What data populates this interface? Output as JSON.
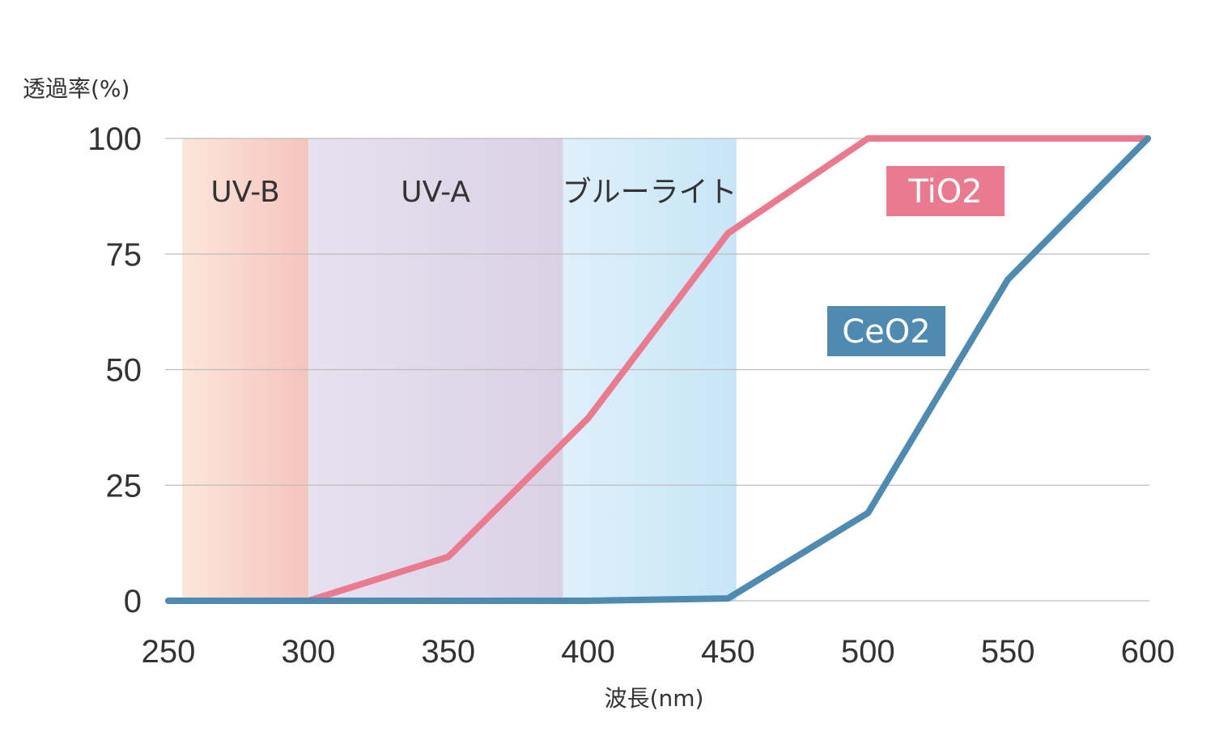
{
  "chart_data": {
    "type": "line",
    "ylabel": "透過率(%)",
    "xlabel": "波長(nm)",
    "xlim": [
      250,
      600
    ],
    "ylim": [
      0,
      100
    ],
    "x_ticks": [
      "250",
      "300",
      "350",
      "400",
      "450",
      "500",
      "550",
      "600"
    ],
    "y_ticks": [
      "0",
      "25",
      "50",
      "75",
      "100"
    ],
    "x_tick_values": [
      250,
      300,
      350,
      400,
      450,
      500,
      550,
      600
    ],
    "y_tick_values": [
      0,
      25,
      50,
      75,
      100
    ],
    "grid": true,
    "regions": [
      {
        "label": "UV-B",
        "x_start": 255,
        "x_end": 300,
        "color_light": "#fce6dc",
        "color_dark": "#f5c4bd"
      },
      {
        "label": "UV-A",
        "x_start": 300,
        "x_end": 391,
        "color_light": "#e6e1ef",
        "color_dark": "#dbd1e6"
      },
      {
        "label": "ブルーライト",
        "x_start": 391,
        "x_end": 453,
        "color_light": "#def0fa",
        "color_dark": "#c8e5f7"
      }
    ],
    "series": [
      {
        "name": "TiO2",
        "color": "#e97a8f",
        "x": [
          250,
          300,
          350,
          400,
          450,
          500,
          550,
          600
        ],
        "values": [
          0,
          0,
          9.5,
          39.5,
          79.5,
          100,
          100,
          100
        ]
      },
      {
        "name": "CeO2",
        "color": "#4f8ab0",
        "x": [
          250,
          300,
          350,
          400,
          450,
          500,
          550,
          600
        ],
        "values": [
          0,
          0,
          0,
          0,
          0.5,
          19,
          69.5,
          100
        ]
      }
    ],
    "series_label_positions": [
      "right-of-center-top",
      "center"
    ]
  }
}
